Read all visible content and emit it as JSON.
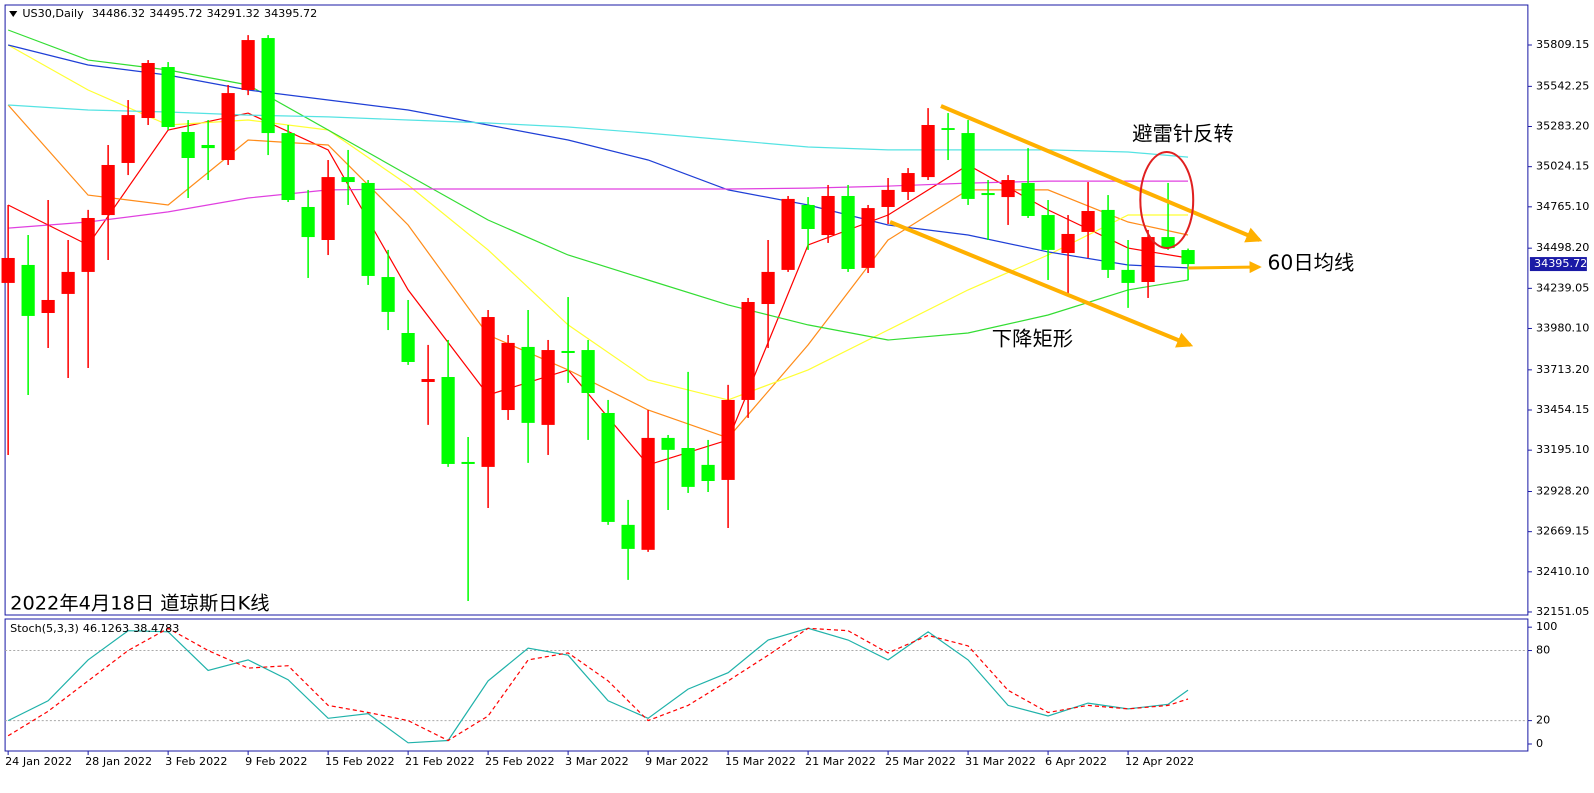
{
  "chart_data": [
    {
      "type": "candlestick",
      "title": "US30,Daily",
      "categories": [
        "24 Jan 2022",
        null,
        null,
        null,
        "28 Jan 2022",
        null,
        null,
        null,
        "3 Feb 2022",
        null,
        null,
        null,
        "9 Feb 2022",
        null,
        null,
        null,
        "15 Feb 2022",
        null,
        null,
        null,
        "21 Feb 2022",
        null,
        null,
        null,
        "25 Feb 2022",
        null,
        null,
        null,
        "3 Mar 2022",
        null,
        null,
        null,
        "9 Mar 2022",
        null,
        null,
        null,
        "15 Mar 2022",
        null,
        null,
        null,
        "21 Mar 2022",
        null,
        null,
        null,
        "25 Mar 2022",
        null,
        null,
        null,
        "31 Mar 2022",
        null,
        null,
        null,
        "6 Apr 2022",
        null,
        null,
        null,
        "12 Apr 2022",
        null,
        null,
        null
      ],
      "open": [
        34274,
        34390,
        34080,
        34203,
        34345,
        34712,
        35048,
        35338,
        35667,
        35248,
        35164,
        35067,
        35519,
        35854,
        35241,
        34764,
        34551,
        34957,
        34919,
        34312,
        33951,
        33635,
        33667,
        33119,
        33087,
        33454,
        33861,
        33358,
        33835,
        33841,
        33435,
        32713,
        32552,
        33274,
        33209,
        33100,
        33003,
        33519,
        34138,
        34358,
        34777,
        34583,
        34835,
        34371,
        34764,
        34861,
        34957,
        35273,
        35241,
        34854,
        34828,
        34919,
        34712,
        34467,
        34603,
        34745,
        34358,
        34280,
        34570,
        34486.32
      ],
      "high": [
        34777,
        34583,
        34809,
        34551,
        34745,
        35164,
        35454,
        35712,
        35699,
        35325,
        35325,
        35551,
        35873,
        35873,
        35293,
        34874,
        35067,
        35132,
        34938,
        34487,
        34164,
        33874,
        33906,
        33280,
        34099,
        33938,
        34099,
        33906,
        34183,
        33906,
        33519,
        32874,
        33454,
        33293,
        33700,
        33261,
        33616,
        34177,
        34551,
        34835,
        34828,
        34906,
        34906,
        34777,
        34951,
        35015,
        35402,
        35370,
        35325,
        34938,
        34970,
        35144,
        34809,
        34712,
        34925,
        34841,
        34551,
        34616,
        34919,
        34495.72
      ],
      "low": [
        33164,
        33551,
        33854,
        33661,
        33725,
        34422,
        34970,
        35293,
        35261,
        34822,
        34938,
        35035,
        35486,
        35099,
        34796,
        34306,
        34454,
        34777,
        34261,
        33970,
        33745,
        33358,
        33087,
        32222,
        32822,
        33390,
        33113,
        33164,
        33629,
        33261,
        32713,
        32358,
        32539,
        32809,
        32919,
        32925,
        32693,
        33403,
        33854,
        34345,
        34487,
        34532,
        34345,
        34338,
        34654,
        34809,
        34938,
        35067,
        34777,
        34551,
        34648,
        34693,
        34293,
        34196,
        34435,
        34306,
        34113,
        34177,
        34487,
        34291.32
      ],
      "close": [
        34435,
        34061,
        34164,
        34345,
        34693,
        35035,
        35357,
        35693,
        35280,
        35080,
        35144,
        35499,
        35841,
        35241,
        34809,
        34570,
        34957,
        34925,
        34319,
        34087,
        33764,
        33654,
        33106,
        33106,
        34054,
        33887,
        33371,
        33841,
        33822,
        33564,
        32732,
        32558,
        33274,
        33197,
        32958,
        32996,
        33519,
        34151,
        34345,
        34816,
        34622,
        34835,
        34364,
        34757,
        34874,
        34983,
        35293,
        35261,
        34816,
        34841,
        34938,
        34706,
        34487,
        34590,
        34738,
        34358,
        34274,
        34570,
        34499,
        34395.72
      ],
      "up_color": "#ff0000",
      "down_color": "#00ff00",
      "ylim": [
        32131.5,
        36067.2
      ],
      "yticks": [
        35809.15,
        35542.25,
        {
          "value": 35283.2,
          "label": "35283.20"
        },
        35024.15,
        {
          "value": 34765.1,
          "label": "34765.10"
        },
        {
          "value": 34498.2,
          "label": "34498.20"
        },
        34239.05,
        {
          "value": 33980.1,
          "label": "33980.10"
        },
        {
          "value": 33713.2,
          "label": "33713.20"
        },
        33454.15,
        {
          "value": 33195.1,
          "label": "33195.10"
        },
        {
          "value": 32928.2,
          "label": "32928.20"
        },
        32669.15,
        {
          "value": 32410.1,
          "label": "32410.10"
        },
        32151.05
      ],
      "overlay_x": [
        0,
        4,
        8,
        12,
        16,
        20,
        24,
        28,
        32,
        36,
        40,
        44,
        48,
        52,
        56,
        59
      ],
      "overlays": [
        {
          "color": "#ff0000",
          "values": [
            34777,
            34519,
            35261,
            35370,
            35132,
            34229,
            33551,
            33713,
            33100,
            33261,
            34519,
            34712,
            35035,
            34745,
            34499,
            34435
          ]
        },
        {
          "color": "#ff8c1a",
          "values": [
            35422,
            34841,
            34777,
            35196,
            35164,
            34648,
            33938,
            33713,
            33454,
            33274,
            33874,
            34551,
            34874,
            34874,
            34667,
            34583
          ]
        },
        {
          "color": "#ffff33",
          "values": [
            35809,
            35519,
            35293,
            35325,
            35261,
            34906,
            34487,
            34003,
            33648,
            33519,
            33713,
            33970,
            34229,
            34454,
            34712,
            34712
          ]
        },
        {
          "color": "#33dd33",
          "values": [
            35906,
            35712,
            35648,
            35551,
            35261,
            34970,
            34680,
            34454,
            34293,
            34132,
            34003,
            33906,
            33951,
            34067,
            34229,
            34293
          ]
        },
        {
          "color": "#1f3fd6",
          "values": [
            35809,
            35680,
            35615,
            35519,
            35454,
            35390,
            35293,
            35196,
            35067,
            34874,
            34777,
            34648,
            34583,
            34474,
            34390,
            34371
          ]
        },
        {
          "color": "#55e3e3",
          "values": [
            35422,
            35390,
            35377,
            35357,
            35345,
            35325,
            35306,
            35280,
            35241,
            35196,
            35151,
            35132,
            35132,
            35132,
            35119,
            35086
          ]
        },
        {
          "color": "#e040e0",
          "values": [
            34628,
            34667,
            34732,
            34822,
            34874,
            34880,
            34880,
            34880,
            34880,
            34880,
            34886,
            34899,
            34918,
            34931,
            34931,
            34931
          ]
        }
      ],
      "annotations": [
        "避雷针反转",
        "60日均线",
        "下降矩形"
      ],
      "caption": "2022年4月18日 道琼斯日K线"
    },
    {
      "type": "line",
      "title": "Stoch(5,3,3)",
      "x": [
        0,
        2,
        4,
        6,
        8,
        10,
        12,
        14,
        16,
        18,
        20,
        22,
        24,
        26,
        28,
        30,
        32,
        34,
        36,
        38,
        40,
        42,
        44,
        46,
        48,
        50,
        52,
        54,
        56,
        58,
        59
      ],
      "series": [
        {
          "color": "#20b2aa",
          "values": [
            20,
            37,
            72,
            97,
            96,
            63,
            72,
            55,
            22,
            26,
            1,
            3,
            54,
            82,
            76,
            37,
            22,
            47,
            61,
            89,
            99,
            89,
            72,
            96,
            72,
            33,
            24,
            35,
            30,
            34,
            46.1263
          ]
        },
        {
          "color": "#ff0000",
          "dash": true,
          "values": [
            7,
            28,
            54,
            80,
            99,
            80,
            65,
            67,
            33,
            27,
            20,
            3,
            24,
            72,
            78,
            54,
            20,
            33,
            54,
            76,
            99,
            97,
            78,
            93,
            84,
            46,
            27,
            33,
            30,
            33,
            38.4783
          ]
        }
      ],
      "ylim": [
        -6,
        107
      ],
      "yticks": [
        0,
        20,
        80,
        100
      ],
      "levels": [
        20,
        80
      ]
    }
  ]
}
